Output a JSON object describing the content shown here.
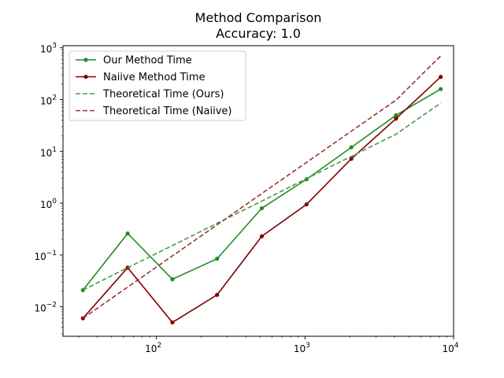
{
  "chart_data": {
    "type": "line",
    "title": "Method Comparison",
    "subtitle": "Accuracy: 1.0",
    "xscale": "log",
    "yscale": "log",
    "xlim": [
      23.5,
      10000
    ],
    "ylim": [
      0.0027,
      1100
    ],
    "grid": false,
    "legend_position": "top-left",
    "x": [
      32,
      64,
      128,
      256,
      512,
      1024,
      2048,
      4096,
      8192
    ],
    "series": [
      {
        "name": "Our Method Time",
        "color": "#228b22",
        "style": "solid-marker",
        "values": [
          0.021,
          0.26,
          0.034,
          0.085,
          0.8,
          2.9,
          12,
          50,
          160
        ]
      },
      {
        "name": "Naiive Method Time",
        "color": "#800000",
        "style": "solid-marker",
        "values": [
          0.006,
          0.057,
          0.005,
          0.017,
          0.23,
          0.95,
          7.2,
          43,
          275
        ]
      },
      {
        "name": "Theoretical Time (Ours)",
        "color": "#4c9a4c",
        "style": "dashed",
        "values": [
          0.021,
          0.057,
          0.152,
          0.41,
          1.1,
          3.0,
          8.0,
          21.5,
          86
        ]
      },
      {
        "name": "Theoretical Time (Naiive)",
        "color": "#9b3333",
        "style": "dashed",
        "values": [
          0.006,
          0.024,
          0.096,
          0.384,
          1.54,
          6.14,
          24.6,
          98,
          700
        ]
      }
    ],
    "x_ticks": [
      {
        "value": 100,
        "base": "10",
        "exp": "2"
      },
      {
        "value": 1000,
        "base": "10",
        "exp": "3"
      },
      {
        "value": 10000,
        "base": "10",
        "exp": "4"
      }
    ],
    "y_ticks": [
      {
        "value": 0.01,
        "base": "10",
        "exp": "−2"
      },
      {
        "value": 0.1,
        "base": "10",
        "exp": "−1"
      },
      {
        "value": 1,
        "base": "10",
        "exp": "0"
      },
      {
        "value": 10,
        "base": "10",
        "exp": "1"
      },
      {
        "value": 100,
        "base": "10",
        "exp": "2"
      },
      {
        "value": 1000,
        "base": "10",
        "exp": "3"
      }
    ]
  }
}
